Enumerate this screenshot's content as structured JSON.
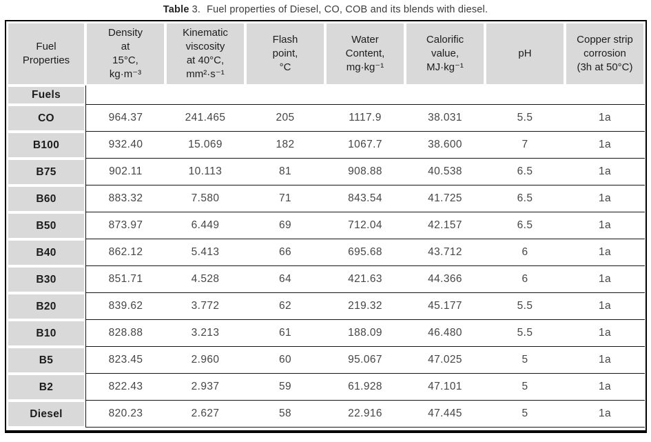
{
  "caption": {
    "label": "Table",
    "number": "3.",
    "text": "Fuel properties of Diesel, CO, COB and its blends with diesel."
  },
  "table": {
    "column_headers": [
      "Fuel\nProperties",
      "Density\nat\n15°C,\nkg·m⁻³",
      "Kinematic\nviscosity\nat 40°C,\nmm²·s⁻¹",
      "Flash\npoint,\n°C",
      "Water\nContent,\nmg·kg⁻¹",
      "Calorific\nvalue,\nMJ·kg⁻¹",
      "pH",
      "Copper strip\ncorrosion\n(3h at 50°C)"
    ],
    "section_row_label": "Fuels",
    "rows": [
      {
        "fuel": "CO",
        "values": [
          "964.37",
          "241.465",
          "205",
          "1117.9",
          "38.031",
          "5.5",
          "1a"
        ]
      },
      {
        "fuel": "B100",
        "values": [
          "932.40",
          "15.069",
          "182",
          "1067.7",
          "38.600",
          "7",
          "1a"
        ]
      },
      {
        "fuel": "B75",
        "values": [
          "902.11",
          "10.113",
          "81",
          "908.88",
          "40.538",
          "6.5",
          "1a"
        ]
      },
      {
        "fuel": "B60",
        "values": [
          "883.32",
          "7.580",
          "71",
          "843.54",
          "41.725",
          "6.5",
          "1a"
        ]
      },
      {
        "fuel": "B50",
        "values": [
          "873.97",
          "6.449",
          "69",
          "712.04",
          "42.157",
          "6.5",
          "1a"
        ]
      },
      {
        "fuel": "B40",
        "values": [
          "862.12",
          "5.413",
          "66",
          "695.68",
          "43.712",
          "6",
          "1a"
        ]
      },
      {
        "fuel": "B30",
        "values": [
          "851.71",
          "4.528",
          "64",
          "421.63",
          "44.366",
          "6",
          "1a"
        ]
      },
      {
        "fuel": "B20",
        "values": [
          "839.62",
          "3.772",
          "62",
          "219.32",
          "45.177",
          "5.5",
          "1a"
        ]
      },
      {
        "fuel": "B10",
        "values": [
          "828.88",
          "3.213",
          "61",
          "188.09",
          "46.480",
          "5.5",
          "1a"
        ]
      },
      {
        "fuel": "B5",
        "values": [
          "823.45",
          "2.960",
          "60",
          "95.067",
          "47.025",
          "5",
          "1a"
        ]
      },
      {
        "fuel": "B2",
        "values": [
          "822.43",
          "2.937",
          "59",
          "61.928",
          "47.101",
          "5",
          "1a"
        ]
      },
      {
        "fuel": "Diesel",
        "values": [
          "820.23",
          "2.627",
          "58",
          "22.916",
          "47.445",
          "5",
          "1a"
        ]
      }
    ]
  },
  "colors": {
    "cell_bg": "#d9d9d9",
    "line_color": "#121212",
    "border_color": "#000000"
  }
}
